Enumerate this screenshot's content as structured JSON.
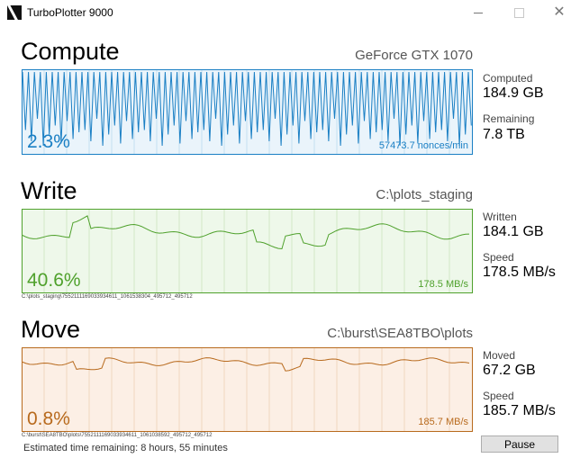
{
  "window": {
    "title": "TurboPlotter 9000"
  },
  "colors": {
    "compute": "#1a7fc4",
    "compute_bg": "#eaf4fb",
    "write": "#4fa12c",
    "write_bg": "#eef8ea",
    "move": "#b86a1d",
    "move_bg": "#fcefe5"
  },
  "compute": {
    "title": "Compute",
    "device": "GeForce GTX 1070",
    "percent": "2.3%",
    "rate": "57473.7 nonces/min",
    "stats": [
      {
        "label": "Computed",
        "value": "184.9 GB"
      },
      {
        "label": "Remaining",
        "value": "7.8 TB"
      }
    ]
  },
  "write": {
    "title": "Write",
    "path": "C:\\plots_staging",
    "percent": "40.6%",
    "rate": "178.5 MB/s",
    "file": "C:\\plots_staging\\7552111169033934611_1061538304_495712_495712",
    "stats": [
      {
        "label": "Written",
        "value": "184.1 GB"
      },
      {
        "label": "Speed",
        "value": "178.5 MB/s"
      }
    ]
  },
  "move": {
    "title": "Move",
    "path": "C:\\burst\\SEA8TBO\\plots",
    "percent": "0.8%",
    "rate": "185.7 MB/s",
    "file": "C:\\burst\\SEA8TBO\\plots\\7552111169033934611_1061038592_495712_495712",
    "stats": [
      {
        "label": "Moved",
        "value": "67.2 GB"
      },
      {
        "label": "Speed",
        "value": "185.7 MB/s"
      }
    ]
  },
  "footer": {
    "eta": "Estimated time remaining: 8 hours, 55 minutes",
    "pause_label": "Pause"
  }
}
